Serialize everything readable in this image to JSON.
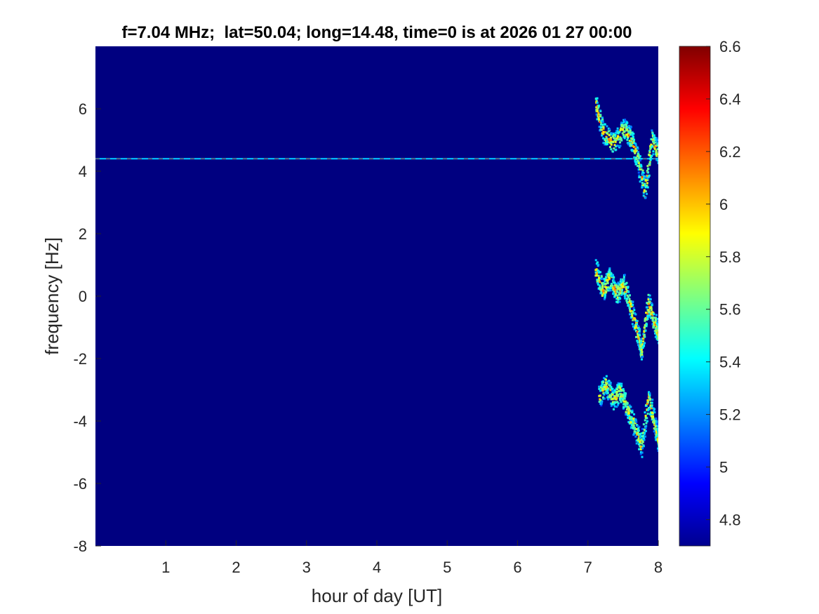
{
  "chart_data": {
    "type": "heatmap",
    "title": "f=7.04 MHz;  lat=50.04; long=14.48, time=0 is at 2026 01 27 00:00",
    "xlabel": "hour of day [UT]",
    "ylabel": "frequency [Hz]",
    "xlim": [
      0,
      8
    ],
    "ylim": [
      -8,
      8
    ],
    "x_ticks": [
      1,
      2,
      3,
      4,
      5,
      6,
      7,
      8
    ],
    "x_tick_labels": [
      "1",
      "2",
      "3",
      "4",
      "5",
      "6",
      "7",
      "8"
    ],
    "y_ticks": [
      6,
      4,
      2,
      0,
      -2,
      -4,
      -6,
      -8
    ],
    "y_tick_labels": [
      "6",
      "4",
      "2",
      "0",
      "-2",
      "-4",
      "-6",
      "-8"
    ],
    "colorbar": {
      "colormap": "jet",
      "clim": [
        4.7,
        6.6
      ],
      "ticks": [
        6.6,
        6.4,
        6.2,
        6.0,
        5.8,
        5.6,
        5.4,
        5.2,
        5.0,
        4.8
      ],
      "tick_labels": [
        "6.6",
        "6.4",
        "6.2",
        "6",
        "5.8",
        "5.6",
        "5.4",
        "5.2",
        "5",
        "4.8"
      ]
    },
    "background_value": 4.7,
    "features": [
      {
        "kind": "constant-line",
        "freq_hz": 4.4,
        "x_range": [
          0,
          8
        ],
        "value": 5.6
      },
      {
        "kind": "trace",
        "value": 6.3,
        "points": [
          [
            7.1,
            6.2
          ],
          [
            7.2,
            5.3
          ],
          [
            7.35,
            4.9
          ],
          [
            7.5,
            5.4
          ],
          [
            7.6,
            5.1
          ],
          [
            7.7,
            4.4
          ],
          [
            7.8,
            3.4
          ],
          [
            7.9,
            5.0
          ],
          [
            8.0,
            4.6
          ]
        ]
      },
      {
        "kind": "trace",
        "value": 6.3,
        "points": [
          [
            7.1,
            0.9
          ],
          [
            7.2,
            0.2
          ],
          [
            7.3,
            0.6
          ],
          [
            7.4,
            0.1
          ],
          [
            7.5,
            0.4
          ],
          [
            7.6,
            -0.3
          ],
          [
            7.7,
            -1.2
          ],
          [
            7.75,
            -1.7
          ],
          [
            7.85,
            -0.2
          ],
          [
            7.95,
            -0.9
          ],
          [
            8.0,
            -1.2
          ]
        ]
      },
      {
        "kind": "trace",
        "value": 6.2,
        "points": [
          [
            7.15,
            -3.2
          ],
          [
            7.25,
            -2.8
          ],
          [
            7.35,
            -3.3
          ],
          [
            7.45,
            -3.0
          ],
          [
            7.55,
            -3.6
          ],
          [
            7.65,
            -4.1
          ],
          [
            7.75,
            -4.8
          ],
          [
            7.85,
            -3.2
          ],
          [
            7.95,
            -4.2
          ],
          [
            8.0,
            -4.6
          ]
        ]
      }
    ]
  }
}
